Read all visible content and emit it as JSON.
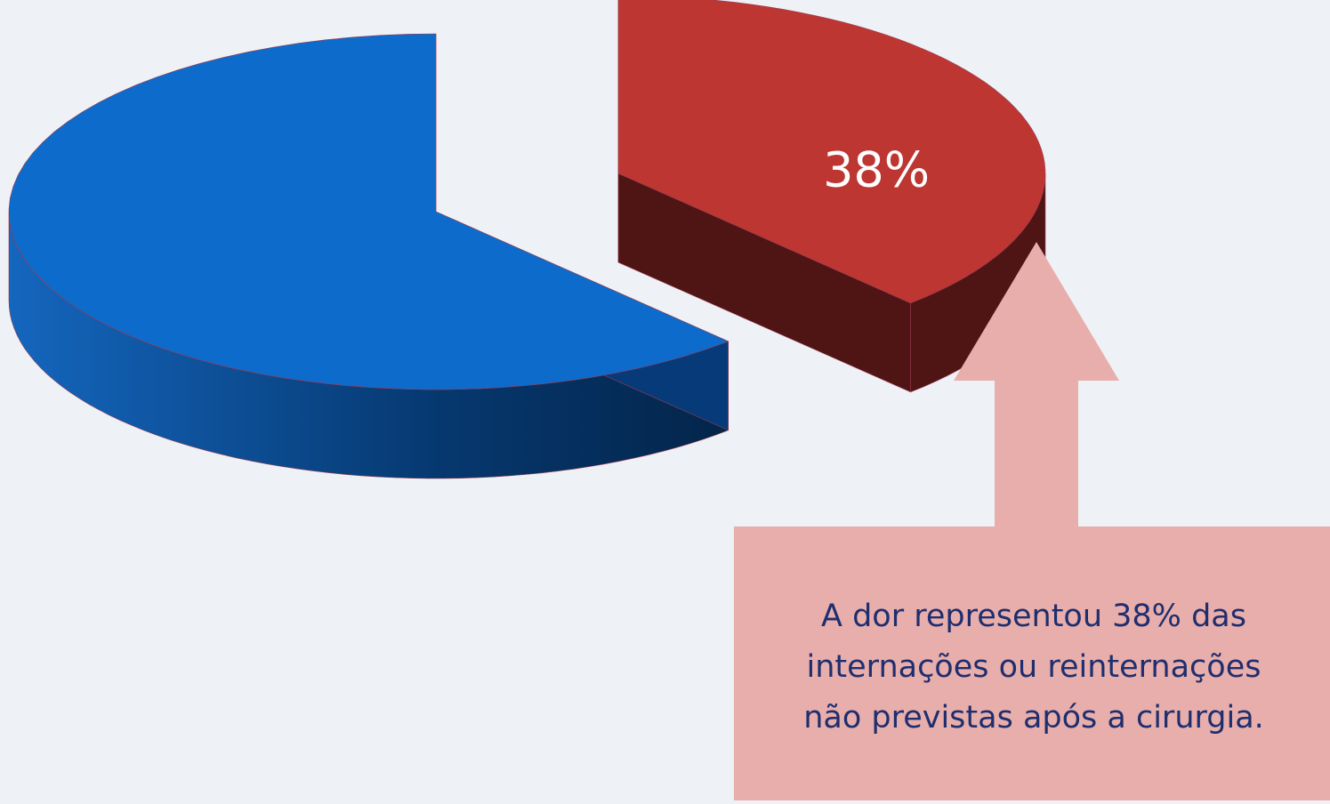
{
  "chart_data": {
    "type": "pie",
    "values": [
      62,
      38
    ],
    "value_labels": [
      null,
      "38%"
    ],
    "colors": [
      "#0d6bcb",
      "#bd3632"
    ],
    "side_colors": [
      "#073a78",
      "#4f1514"
    ],
    "exploded": [
      false,
      true
    ],
    "annotation": [
      "A dor representou 38% das",
      "internações ou reinternações",
      "não previstas após a cirurgia."
    ]
  }
}
